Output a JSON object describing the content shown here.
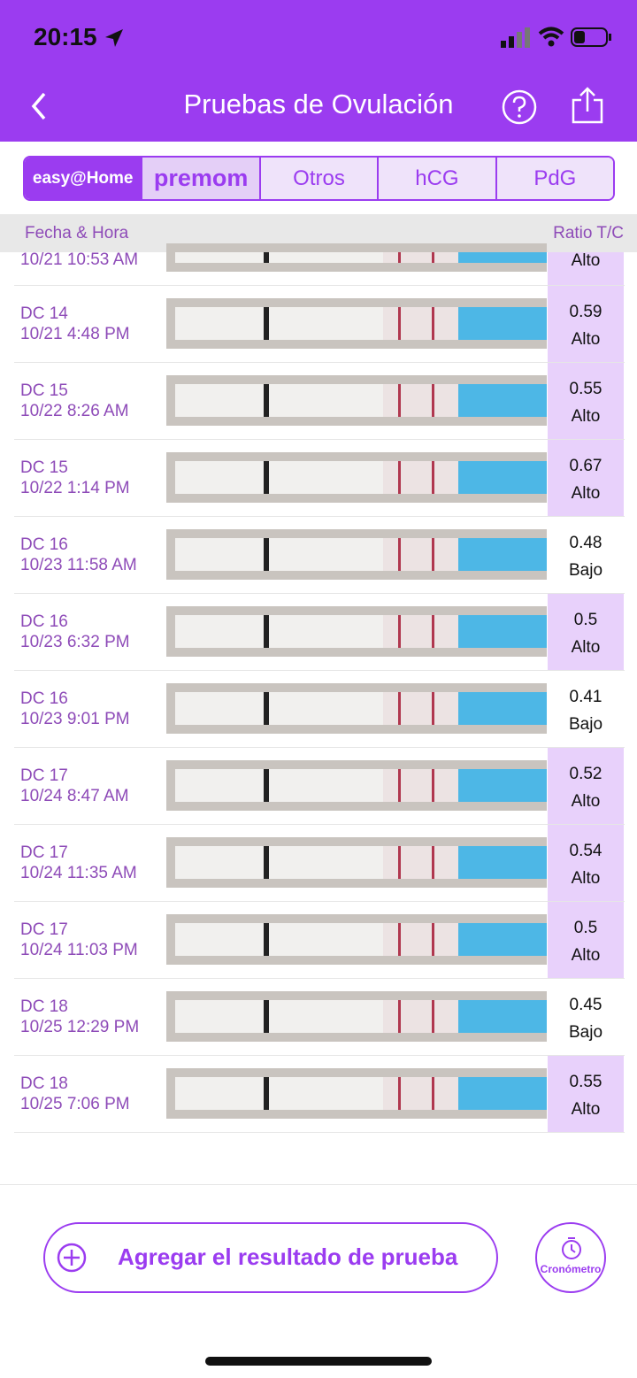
{
  "status_bar": {
    "time": "20:15"
  },
  "header": {
    "title": "Pruebas de Ovulación"
  },
  "tabs": [
    "easy@Home",
    "premom",
    "Otros",
    "hCG",
    "PdG"
  ],
  "table": {
    "columns": [
      "Fecha & Hora",
      "Ratio T/C"
    ],
    "partial_row": {
      "datetime": "10/21 10:53 AM",
      "level": "Alto"
    },
    "rows": [
      {
        "cycle_day": "DC 14",
        "datetime": "10/21 4:48 PM",
        "ratio": "0.59",
        "level": "Alto"
      },
      {
        "cycle_day": "DC 15",
        "datetime": "10/22 8:26 AM",
        "ratio": "0.55",
        "level": "Alto"
      },
      {
        "cycle_day": "DC 15",
        "datetime": "10/22 1:14 PM",
        "ratio": "0.67",
        "level": "Alto"
      },
      {
        "cycle_day": "DC 16",
        "datetime": "10/23 11:58 AM",
        "ratio": "0.48",
        "level": "Bajo"
      },
      {
        "cycle_day": "DC 16",
        "datetime": "10/23 6:32 PM",
        "ratio": "0.5",
        "level": "Alto"
      },
      {
        "cycle_day": "DC 16",
        "datetime": "10/23 9:01 PM",
        "ratio": "0.41",
        "level": "Bajo"
      },
      {
        "cycle_day": "DC 17",
        "datetime": "10/24 8:47 AM",
        "ratio": "0.52",
        "level": "Alto"
      },
      {
        "cycle_day": "DC 17",
        "datetime": "10/24 11:35 AM",
        "ratio": "0.54",
        "level": "Alto"
      },
      {
        "cycle_day": "DC 17",
        "datetime": "10/24 11:03 PM",
        "ratio": "0.5",
        "level": "Alto"
      },
      {
        "cycle_day": "DC 18",
        "datetime": "10/25 12:29 PM",
        "ratio": "0.45",
        "level": "Bajo"
      },
      {
        "cycle_day": "DC 18",
        "datetime": "10/25 7:06 PM",
        "ratio": "0.55",
        "level": "Alto"
      }
    ]
  },
  "actions": {
    "add_result": "Agregar el resultado de prueba",
    "timer": "Cronómetro"
  }
}
